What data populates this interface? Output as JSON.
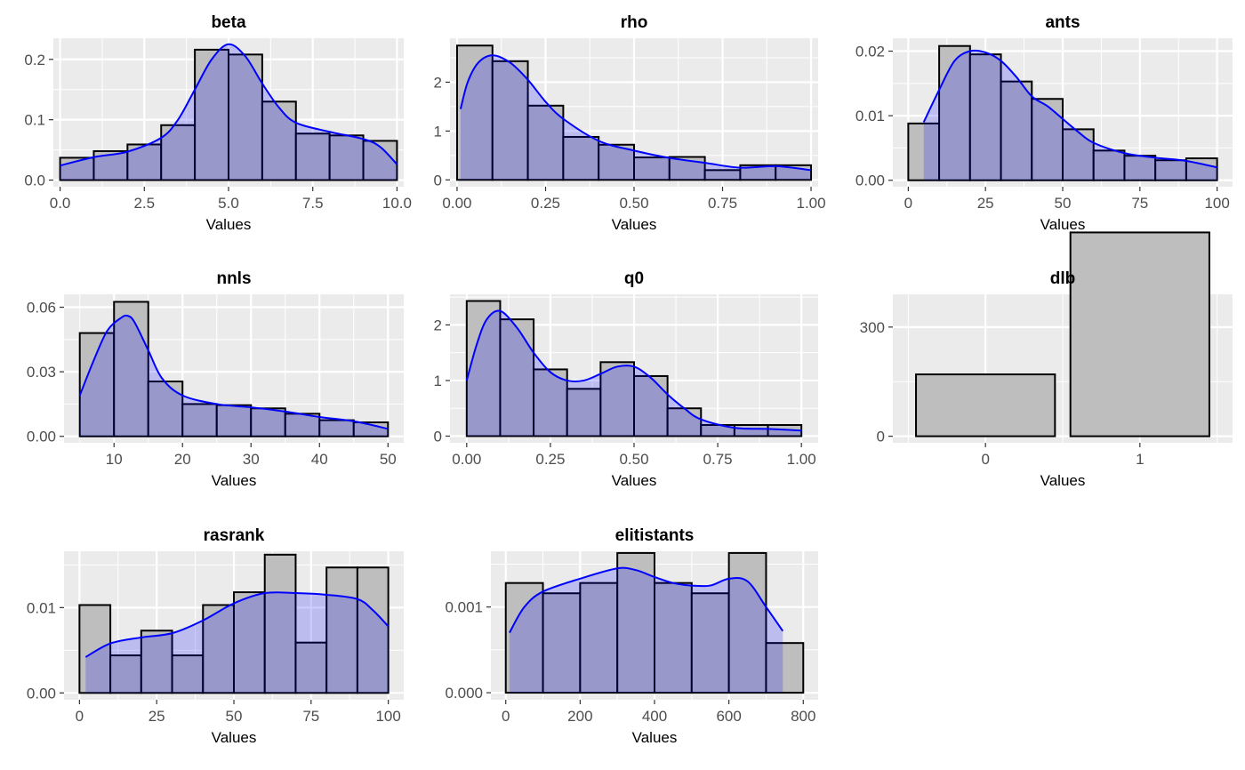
{
  "chart_data": [
    {
      "type": "bar",
      "title": "beta",
      "xlabel": "Values",
      "ylabel": "",
      "xlim": [
        -0.2,
        10.2
      ],
      "ylim": [
        -0.011,
        0.235
      ],
      "xticks": [
        0,
        2.5,
        5,
        7.5,
        10
      ],
      "xtick_labels": [
        "0.0",
        "2.5",
        "5.0",
        "7.5",
        "10.0"
      ],
      "yticks": [
        0,
        0.1,
        0.2
      ],
      "ytick_labels": [
        "0.0",
        "0.1",
        "0.2"
      ],
      "bins": [
        [
          0,
          1
        ],
        [
          1,
          2
        ],
        [
          2,
          3
        ],
        [
          3,
          4
        ],
        [
          4,
          5
        ],
        [
          5,
          6
        ],
        [
          6,
          7
        ],
        [
          7,
          8
        ],
        [
          8,
          9
        ],
        [
          9,
          10
        ]
      ],
      "values": [
        0.037,
        0.048,
        0.059,
        0.091,
        0.216,
        0.208,
        0.13,
        0.077,
        0.074,
        0.065
      ],
      "density_x": [
        0,
        1,
        2,
        3,
        3.5,
        4,
        4.5,
        5,
        5.5,
        6,
        6.5,
        7,
        8,
        9,
        9.5,
        10
      ],
      "density_y": [
        0.024,
        0.038,
        0.047,
        0.07,
        0.1,
        0.15,
        0.2,
        0.225,
        0.205,
        0.16,
        0.12,
        0.095,
        0.08,
        0.068,
        0.055,
        0.026
      ],
      "density_color": "#0000ff",
      "bar_color": "#bebebe"
    },
    {
      "type": "bar",
      "title": "rho",
      "xlabel": "Values",
      "ylabel": "",
      "xlim": [
        -0.02,
        1.02
      ],
      "ylim": [
        -0.14,
        2.9
      ],
      "xticks": [
        0,
        0.25,
        0.5,
        0.75,
        1
      ],
      "xtick_labels": [
        "0.00",
        "0.25",
        "0.50",
        "0.75",
        "1.00"
      ],
      "yticks": [
        0,
        1,
        2
      ],
      "ytick_labels": [
        "0",
        "1",
        "2"
      ],
      "bins": [
        [
          0,
          0.1
        ],
        [
          0.1,
          0.2
        ],
        [
          0.2,
          0.3
        ],
        [
          0.3,
          0.4
        ],
        [
          0.4,
          0.5
        ],
        [
          0.5,
          0.6
        ],
        [
          0.6,
          0.7
        ],
        [
          0.7,
          0.8
        ],
        [
          0.8,
          0.9
        ],
        [
          0.9,
          1.0
        ]
      ],
      "values": [
        2.75,
        2.43,
        1.52,
        0.88,
        0.72,
        0.46,
        0.47,
        0.2,
        0.3,
        0.3
      ],
      "density_x": [
        0.01,
        0.03,
        0.06,
        0.1,
        0.15,
        0.2,
        0.25,
        0.3,
        0.4,
        0.5,
        0.6,
        0.7,
        0.8,
        0.9,
        1.0
      ],
      "density_y": [
        1.45,
        2.0,
        2.4,
        2.55,
        2.4,
        2.05,
        1.6,
        1.25,
        0.8,
        0.6,
        0.45,
        0.35,
        0.25,
        0.28,
        0.2
      ],
      "density_color": "#0000ff",
      "bar_color": "#bebebe"
    },
    {
      "type": "bar",
      "title": "ants",
      "xlabel": "Values",
      "ylabel": "",
      "xlim": [
        -5,
        105
      ],
      "ylim": [
        -0.001,
        0.022
      ],
      "xticks": [
        0,
        25,
        50,
        75,
        100
      ],
      "xtick_labels": [
        "0",
        "25",
        "50",
        "75",
        "100"
      ],
      "yticks": [
        0,
        0.01,
        0.02
      ],
      "ytick_labels": [
        "0.00",
        "0.01",
        "0.02"
      ],
      "bins": [
        [
          0,
          10
        ],
        [
          10,
          20
        ],
        [
          20,
          30
        ],
        [
          30,
          40
        ],
        [
          40,
          50
        ],
        [
          50,
          60
        ],
        [
          60,
          70
        ],
        [
          70,
          80
        ],
        [
          80,
          90
        ],
        [
          90,
          100
        ]
      ],
      "values": [
        0.0088,
        0.0208,
        0.0195,
        0.0153,
        0.0126,
        0.0079,
        0.0046,
        0.0038,
        0.0031,
        0.0034
      ],
      "density_x": [
        5,
        10,
        15,
        20,
        25,
        30,
        35,
        40,
        45,
        50,
        55,
        60,
        70,
        80,
        90,
        100
      ],
      "density_y": [
        0.009,
        0.014,
        0.0185,
        0.02,
        0.0198,
        0.0185,
        0.016,
        0.013,
        0.0115,
        0.0095,
        0.0075,
        0.0058,
        0.0042,
        0.0035,
        0.003,
        0.002
      ],
      "density_color": "#0000ff",
      "bar_color": "#bebebe"
    },
    {
      "type": "bar",
      "title": "nnls",
      "xlabel": "Values",
      "ylabel": "",
      "xlim": [
        2.7,
        52.3
      ],
      "ylim": [
        -0.003,
        0.066
      ],
      "xticks": [
        10,
        20,
        30,
        40,
        50
      ],
      "xtick_labels": [
        "10",
        "20",
        "30",
        "40",
        "50"
      ],
      "yticks": [
        0,
        0.03,
        0.06
      ],
      "ytick_labels": [
        "0.00",
        "0.03",
        "0.06"
      ],
      "bins": [
        [
          5,
          10
        ],
        [
          10,
          15
        ],
        [
          15,
          20
        ],
        [
          20,
          25
        ],
        [
          25,
          30
        ],
        [
          30,
          35
        ],
        [
          35,
          40
        ],
        [
          40,
          45
        ],
        [
          45,
          50
        ]
      ],
      "values": [
        0.048,
        0.0625,
        0.0255,
        0.015,
        0.0145,
        0.013,
        0.0105,
        0.0075,
        0.0065
      ],
      "density_x": [
        5,
        7,
        9,
        11,
        12,
        13,
        15,
        17,
        20,
        25,
        30,
        35,
        40,
        45,
        50
      ],
      "density_y": [
        0.019,
        0.035,
        0.049,
        0.055,
        0.056,
        0.053,
        0.04,
        0.027,
        0.019,
        0.015,
        0.0135,
        0.0115,
        0.009,
        0.007,
        0.0035
      ],
      "density_color": "#0000ff",
      "bar_color": "#bebebe"
    },
    {
      "type": "bar",
      "title": "q0",
      "xlabel": "Values",
      "ylabel": "",
      "xlim": [
        -0.05,
        1.05
      ],
      "ylim": [
        -0.12,
        2.55
      ],
      "xticks": [
        0,
        0.25,
        0.5,
        0.75,
        1
      ],
      "xtick_labels": [
        "0.00",
        "0.25",
        "0.50",
        "0.75",
        "1.00"
      ],
      "yticks": [
        0,
        1,
        2
      ],
      "ytick_labels": [
        "0",
        "1",
        "2"
      ],
      "bins": [
        [
          0,
          0.1
        ],
        [
          0.1,
          0.2
        ],
        [
          0.2,
          0.3
        ],
        [
          0.3,
          0.4
        ],
        [
          0.4,
          0.5
        ],
        [
          0.5,
          0.6
        ],
        [
          0.6,
          0.7
        ],
        [
          0.7,
          0.8
        ],
        [
          0.8,
          0.9
        ],
        [
          0.9,
          1.0
        ]
      ],
      "values": [
        2.43,
        2.1,
        1.2,
        0.85,
        1.33,
        1.08,
        0.5,
        0.2,
        0.2,
        0.2
      ],
      "density_x": [
        0.0,
        0.03,
        0.06,
        0.1,
        0.15,
        0.2,
        0.25,
        0.3,
        0.35,
        0.4,
        0.45,
        0.5,
        0.55,
        0.6,
        0.65,
        0.7,
        0.8,
        0.9,
        1.0
      ],
      "density_y": [
        1.0,
        1.65,
        2.1,
        2.25,
        1.95,
        1.5,
        1.15,
        1.0,
        1.0,
        1.12,
        1.25,
        1.25,
        1.05,
        0.75,
        0.5,
        0.3,
        0.15,
        0.13,
        0.1
      ],
      "density_color": "#0000ff",
      "bar_color": "#bebebe"
    },
    {
      "type": "bar",
      "title": "dlb",
      "xlabel": "Values",
      "ylabel": "",
      "xlim": [
        -0.6,
        1.6
      ],
      "ylim": [
        -18,
        390
      ],
      "xticks": [
        0,
        1
      ],
      "xtick_labels": [
        "0",
        "1"
      ],
      "yticks": [
        0,
        300
      ],
      "ytick_labels": [
        "0",
        "300"
      ],
      "bins": [
        [
          -0.45,
          0.45
        ],
        [
          0.55,
          1.45
        ]
      ],
      "values": [
        170,
        560
      ],
      "density_color": "#0000ff",
      "bar_color": "#bebebe"
    },
    {
      "type": "bar",
      "title": "rasrank",
      "xlabel": "Values",
      "ylabel": "",
      "xlim": [
        -5,
        105
      ],
      "ylim": [
        -0.0008,
        0.0166
      ],
      "xticks": [
        0,
        25,
        50,
        75,
        100
      ],
      "xtick_labels": [
        "0",
        "25",
        "50",
        "75",
        "100"
      ],
      "yticks": [
        0,
        0.01
      ],
      "ytick_labels": [
        "0.00",
        "0.01"
      ],
      "bins": [
        [
          0,
          10
        ],
        [
          10,
          20
        ],
        [
          20,
          30
        ],
        [
          30,
          40
        ],
        [
          40,
          50
        ],
        [
          50,
          60
        ],
        [
          60,
          70
        ],
        [
          70,
          80
        ],
        [
          80,
          90
        ],
        [
          90,
          100
        ]
      ],
      "values": [
        0.0103,
        0.0044,
        0.0073,
        0.0044,
        0.0103,
        0.0118,
        0.0162,
        0.0059,
        0.0147,
        0.0147
      ],
      "density_x": [
        2,
        10,
        20,
        30,
        40,
        50,
        60,
        70,
        80,
        90,
        95,
        100
      ],
      "density_y": [
        0.0042,
        0.0058,
        0.0065,
        0.007,
        0.0085,
        0.0105,
        0.0117,
        0.0117,
        0.0115,
        0.011,
        0.0097,
        0.0078
      ],
      "density_color": "#0000ff",
      "bar_color": "#bebebe"
    },
    {
      "type": "bar",
      "title": "elitistants",
      "xlabel": "Values",
      "ylabel": "",
      "xlim": [
        -40,
        840
      ],
      "ylim": [
        -8.2e-05,
        0.00165
      ],
      "xticks": [
        0,
        200,
        400,
        600,
        800
      ],
      "xtick_labels": [
        "0",
        "200",
        "400",
        "600",
        "800"
      ],
      "yticks": [
        0,
        0.001
      ],
      "ytick_labels": [
        "0.000",
        "0.001"
      ],
      "bins": [
        [
          0,
          100
        ],
        [
          100,
          200
        ],
        [
          200,
          300
        ],
        [
          300,
          400
        ],
        [
          400,
          500
        ],
        [
          500,
          600
        ],
        [
          600,
          700
        ],
        [
          700,
          800
        ]
      ],
      "values": [
        0.00128,
        0.00116,
        0.00128,
        0.00163,
        0.00128,
        0.00116,
        0.00163,
        0.00058
      ],
      "density_x": [
        10,
        50,
        100,
        200,
        300,
        350,
        400,
        450,
        500,
        550,
        600,
        650,
        700,
        745
      ],
      "density_y": [
        0.0007,
        0.001,
        0.00118,
        0.00133,
        0.00145,
        0.00143,
        0.00135,
        0.00128,
        0.00125,
        0.00125,
        0.00133,
        0.0013,
        0.001,
        0.00072
      ],
      "density_color": "#0000ff",
      "bar_color": "#bebebe"
    }
  ]
}
